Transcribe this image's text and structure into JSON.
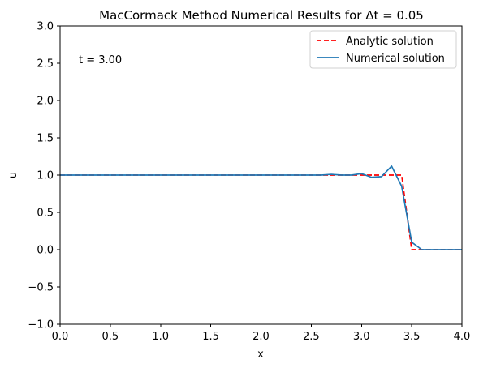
{
  "chart_data": {
    "type": "line",
    "title": "MacCormack Method Numerical Results for Δt = 0.05",
    "xlabel": "x",
    "ylabel": "u",
    "xlim": [
      0,
      4
    ],
    "ylim": [
      -1,
      3
    ],
    "x_ticks": [
      "0.0",
      "0.5",
      "1.0",
      "1.5",
      "2.0",
      "2.5",
      "3.0",
      "3.5",
      "4.0"
    ],
    "y_ticks": [
      "−1.0",
      "−0.5",
      "0.0",
      "0.5",
      "1.0",
      "1.5",
      "2.0",
      "2.5",
      "3.0"
    ],
    "annotation": "t = 3.00",
    "grid": false,
    "legend_position": "top-right",
    "series": [
      {
        "name": "Analytic solution",
        "color": "#ff0000",
        "style": "dashed",
        "points": [
          [
            0,
            1
          ],
          [
            3.4,
            1
          ],
          [
            3.5,
            0
          ],
          [
            4,
            0
          ]
        ]
      },
      {
        "name": "Numerical solution",
        "color": "#1f77b4",
        "style": "solid",
        "points": [
          [
            0.0,
            1.0
          ],
          [
            0.1,
            1.0
          ],
          [
            0.2,
            1.0
          ],
          [
            0.3,
            1.0
          ],
          [
            0.4,
            1.0
          ],
          [
            0.5,
            1.0
          ],
          [
            0.6,
            1.0
          ],
          [
            0.7,
            1.0
          ],
          [
            0.8,
            1.0
          ],
          [
            0.9,
            1.0
          ],
          [
            1.0,
            1.0
          ],
          [
            1.1,
            1.0
          ],
          [
            1.2,
            1.0
          ],
          [
            1.3,
            1.0
          ],
          [
            1.4,
            1.0
          ],
          [
            1.5,
            1.0
          ],
          [
            1.6,
            1.0
          ],
          [
            1.7,
            1.0
          ],
          [
            1.8,
            1.0
          ],
          [
            1.9,
            1.0
          ],
          [
            2.0,
            1.0
          ],
          [
            2.1,
            1.0
          ],
          [
            2.2,
            1.0
          ],
          [
            2.3,
            1.0
          ],
          [
            2.4,
            1.0
          ],
          [
            2.5,
            1.0
          ],
          [
            2.6,
            1.0
          ],
          [
            2.7,
            1.01
          ],
          [
            2.8,
            1.0
          ],
          [
            2.9,
            1.0
          ],
          [
            3.0,
            1.02
          ],
          [
            3.1,
            0.97
          ],
          [
            3.2,
            0.98
          ],
          [
            3.3,
            1.12
          ],
          [
            3.4,
            0.85
          ],
          [
            3.5,
            0.1
          ],
          [
            3.6,
            0.0
          ],
          [
            3.7,
            0.0
          ],
          [
            3.8,
            0.0
          ],
          [
            3.9,
            0.0
          ],
          [
            4.0,
            0.0
          ]
        ]
      }
    ]
  }
}
